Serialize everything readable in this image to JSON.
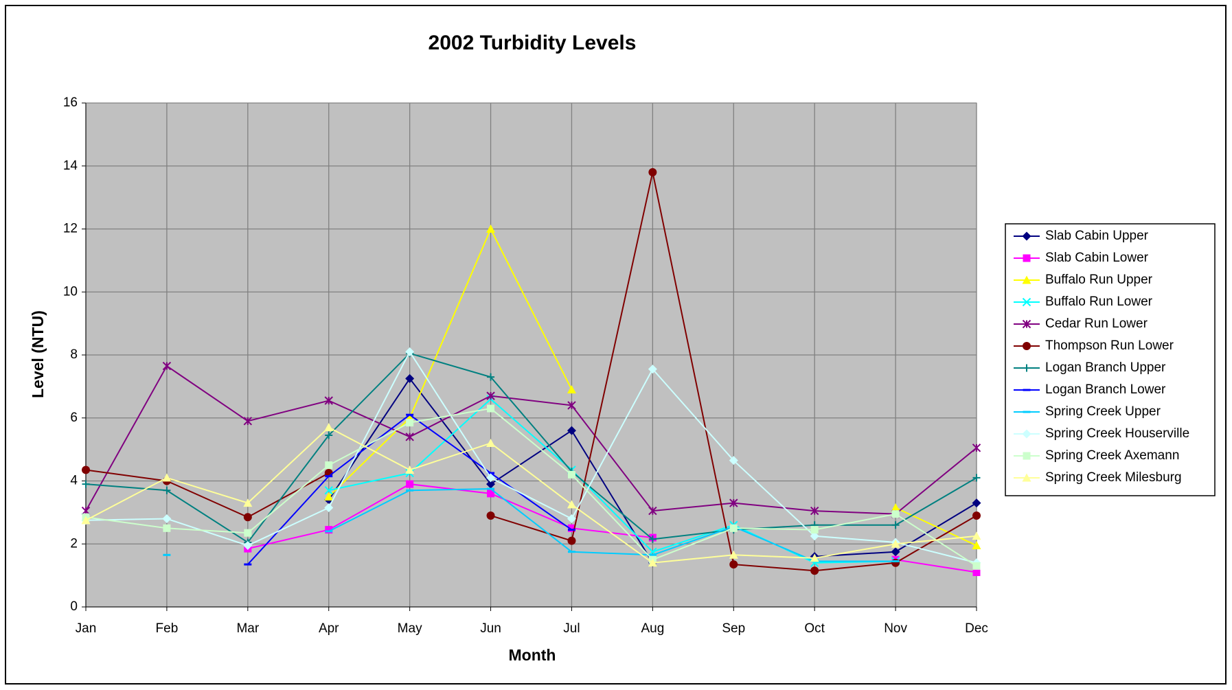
{
  "chart_data": {
    "type": "line",
    "title": "2002 Turbidity Levels",
    "x_label": "Month",
    "y_label": "Level (NTU)",
    "categories": [
      "Jan",
      "Feb",
      "Mar",
      "Apr",
      "May",
      "Jun",
      "Jul",
      "Aug",
      "Sep",
      "Oct",
      "Nov",
      "Dec"
    ],
    "ylim": [
      0,
      16
    ],
    "yticks": [
      0,
      2,
      4,
      6,
      8,
      10,
      12,
      14,
      16
    ],
    "grid": true,
    "legend": "right",
    "series": [
      {
        "name": "Slab Cabin Upper",
        "color": "#000080",
        "marker": "diamond",
        "values": [
          null,
          null,
          null,
          3.4,
          7.25,
          3.9,
          5.6,
          1.4,
          null,
          1.6,
          1.75,
          3.3
        ]
      },
      {
        "name": "Slab Cabin Lower",
        "color": "#ff00ff",
        "marker": "square",
        "values": [
          null,
          null,
          1.85,
          2.45,
          3.9,
          3.6,
          2.5,
          2.2,
          null,
          null,
          1.5,
          1.1
        ]
      },
      {
        "name": "Buffalo Run Upper",
        "color": "#ffff00",
        "marker": "triangle",
        "values": [
          null,
          null,
          null,
          3.5,
          6.0,
          12.0,
          6.9,
          null,
          null,
          null,
          3.15,
          1.95
        ]
      },
      {
        "name": "Buffalo Run Lower",
        "color": "#00ffff",
        "marker": "x",
        "values": [
          2.85,
          null,
          null,
          3.7,
          4.25,
          6.6,
          4.35,
          1.75,
          2.6,
          1.4,
          1.45,
          null
        ]
      },
      {
        "name": "Cedar Run Lower",
        "color": "#800080",
        "marker": "star",
        "values": [
          3.05,
          7.65,
          5.9,
          6.55,
          5.4,
          6.7,
          6.4,
          3.05,
          3.3,
          3.05,
          2.95,
          5.05
        ]
      },
      {
        "name": "Thompson Run Lower",
        "color": "#800000",
        "marker": "circle",
        "values": [
          4.35,
          4.0,
          2.85,
          4.25,
          null,
          2.9,
          2.1,
          13.8,
          1.35,
          1.15,
          1.4,
          2.9
        ]
      },
      {
        "name": "Logan Branch Upper",
        "color": "#008080",
        "marker": "plus",
        "values": [
          3.9,
          3.7,
          2.05,
          5.45,
          8.05,
          7.3,
          4.3,
          2.15,
          2.45,
          2.6,
          2.6,
          4.1
        ]
      },
      {
        "name": "Logan Branch Lower",
        "color": "#0000ff",
        "marker": "dash",
        "values": [
          null,
          null,
          1.35,
          4.15,
          6.1,
          4.25,
          2.45,
          null,
          null,
          null,
          null,
          null
        ]
      },
      {
        "name": "Spring Creek Upper",
        "color": "#00ccff",
        "marker": "dash",
        "values": [
          null,
          1.65,
          null,
          2.4,
          3.7,
          3.75,
          1.75,
          1.65,
          2.55,
          1.45,
          1.45,
          null
        ]
      },
      {
        "name": "Spring Creek Houserville",
        "color": "#ccffff",
        "marker": "diamond",
        "values": [
          2.75,
          2.8,
          1.95,
          3.15,
          8.1,
          4.1,
          2.8,
          7.55,
          4.65,
          2.25,
          2.05,
          1.4
        ]
      },
      {
        "name": "Spring Creek Axemann",
        "color": "#ccffcc",
        "marker": "square",
        "values": [
          2.85,
          2.5,
          2.35,
          4.5,
          5.85,
          6.3,
          4.2,
          1.5,
          2.5,
          2.45,
          2.95,
          1.3
        ]
      },
      {
        "name": "Spring Creek Milesburg",
        "color": "#ffff99",
        "marker": "triangle",
        "values": [
          2.75,
          4.1,
          3.3,
          5.7,
          4.35,
          5.2,
          3.25,
          1.4,
          1.65,
          1.55,
          2.0,
          2.25
        ]
      }
    ]
  }
}
